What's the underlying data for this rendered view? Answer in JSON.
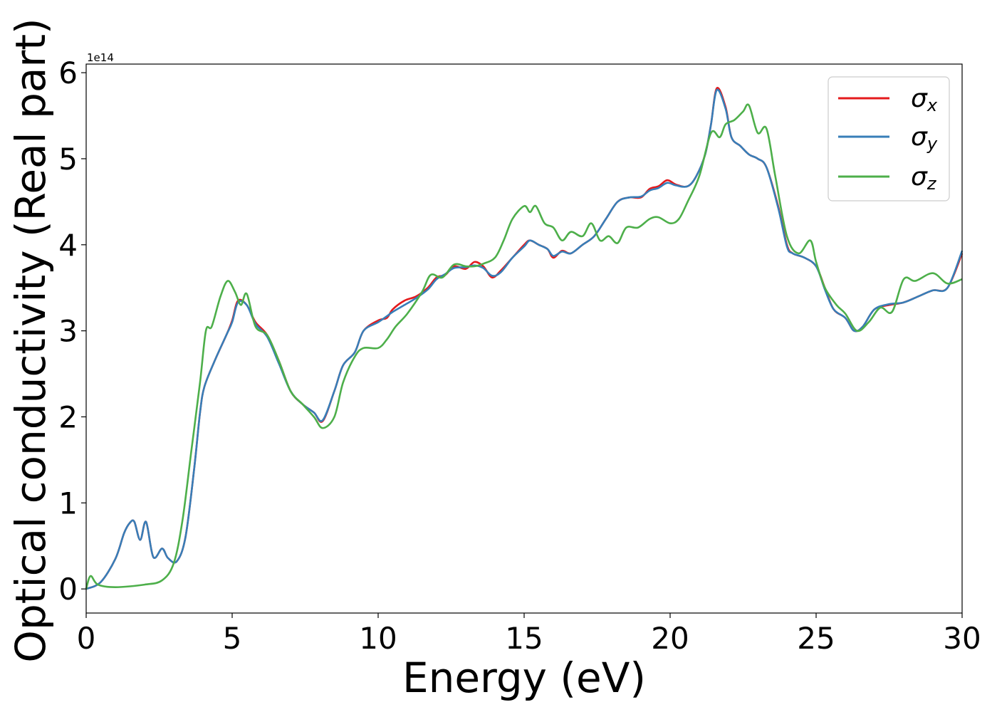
{
  "colors": {
    "sx": "#e41a1c",
    "sy": "#377eb8",
    "sz": "#4daf4a"
  },
  "chart_data": {
    "type": "line",
    "xlabel": "Energy (eV)",
    "ylabel": "Optical conductivity (Real part)",
    "y_offset_label": "1e14",
    "xlim": [
      0,
      30
    ],
    "ylim": [
      -0.28,
      6.1
    ],
    "xticks": [
      0,
      5,
      10,
      15,
      20,
      25,
      30
    ],
    "xtick_labels": [
      "0",
      "5",
      "10",
      "15",
      "20",
      "25",
      "30"
    ],
    "yticks": [
      0,
      1,
      2,
      3,
      4,
      5,
      6
    ],
    "ytick_labels": [
      "0",
      "1",
      "2",
      "3",
      "4",
      "5",
      "6"
    ],
    "grid": false,
    "legend_position": "top-right",
    "legend_labels": {
      "sx_main": "σ",
      "sx_sub": "x",
      "sy_main": "σ",
      "sy_sub": "y",
      "sz_main": "σ",
      "sz_sub": "z"
    },
    "series": [
      {
        "key": "sx",
        "points": [
          [
            0,
            0
          ],
          [
            0.5,
            0.08
          ],
          [
            1.0,
            0.35
          ],
          [
            1.3,
            0.65
          ],
          [
            1.5,
            0.77
          ],
          [
            1.65,
            0.78
          ],
          [
            1.85,
            0.57
          ],
          [
            2.05,
            0.78
          ],
          [
            2.3,
            0.37
          ],
          [
            2.6,
            0.47
          ],
          [
            2.8,
            0.36
          ],
          [
            3.1,
            0.32
          ],
          [
            3.4,
            0.6
          ],
          [
            3.7,
            1.4
          ],
          [
            3.9,
            2.05
          ],
          [
            4.05,
            2.35
          ],
          [
            4.4,
            2.65
          ],
          [
            4.8,
            2.95
          ],
          [
            5.0,
            3.12
          ],
          [
            5.2,
            3.35
          ],
          [
            5.5,
            3.3
          ],
          [
            5.8,
            3.1
          ],
          [
            6.2,
            2.95
          ],
          [
            6.6,
            2.65
          ],
          [
            7.0,
            2.3
          ],
          [
            7.4,
            2.15
          ],
          [
            7.8,
            2.05
          ],
          [
            8.1,
            1.95
          ],
          [
            8.5,
            2.3
          ],
          [
            8.8,
            2.6
          ],
          [
            9.2,
            2.75
          ],
          [
            9.5,
            3.0
          ],
          [
            10.0,
            3.12
          ],
          [
            10.3,
            3.15
          ],
          [
            10.5,
            3.25
          ],
          [
            10.9,
            3.35
          ],
          [
            11.3,
            3.4
          ],
          [
            11.7,
            3.5
          ],
          [
            12.0,
            3.62
          ],
          [
            12.3,
            3.65
          ],
          [
            12.6,
            3.75
          ],
          [
            13.0,
            3.72
          ],
          [
            13.3,
            3.8
          ],
          [
            13.6,
            3.75
          ],
          [
            13.9,
            3.62
          ],
          [
            14.2,
            3.7
          ],
          [
            14.6,
            3.85
          ],
          [
            15.0,
            4.0
          ],
          [
            15.2,
            4.05
          ],
          [
            15.5,
            4.0
          ],
          [
            15.8,
            3.95
          ],
          [
            16.0,
            3.85
          ],
          [
            16.3,
            3.93
          ],
          [
            16.6,
            3.9
          ],
          [
            17.0,
            4.0
          ],
          [
            17.4,
            4.1
          ],
          [
            17.8,
            4.3
          ],
          [
            18.2,
            4.5
          ],
          [
            18.6,
            4.55
          ],
          [
            19.0,
            4.55
          ],
          [
            19.3,
            4.65
          ],
          [
            19.6,
            4.68
          ],
          [
            19.9,
            4.75
          ],
          [
            20.2,
            4.7
          ],
          [
            20.6,
            4.68
          ],
          [
            20.9,
            4.8
          ],
          [
            21.2,
            5.05
          ],
          [
            21.4,
            5.4
          ],
          [
            21.6,
            5.82
          ],
          [
            21.9,
            5.6
          ],
          [
            22.1,
            5.25
          ],
          [
            22.4,
            5.15
          ],
          [
            22.7,
            5.05
          ],
          [
            23.0,
            5.0
          ],
          [
            23.3,
            4.9
          ],
          [
            23.7,
            4.45
          ],
          [
            24.0,
            4.0
          ],
          [
            24.2,
            3.9
          ],
          [
            24.6,
            3.85
          ],
          [
            25.0,
            3.75
          ],
          [
            25.3,
            3.5
          ],
          [
            25.6,
            3.25
          ],
          [
            26.0,
            3.15
          ],
          [
            26.3,
            3.0
          ],
          [
            26.6,
            3.05
          ],
          [
            27.0,
            3.25
          ],
          [
            27.5,
            3.3
          ],
          [
            28.0,
            3.33
          ],
          [
            28.5,
            3.4
          ],
          [
            29.0,
            3.47
          ],
          [
            29.5,
            3.5
          ],
          [
            30,
            3.9
          ]
        ]
      },
      {
        "key": "sy",
        "points": [
          [
            0,
            0
          ],
          [
            0.5,
            0.08
          ],
          [
            1.0,
            0.35
          ],
          [
            1.3,
            0.65
          ],
          [
            1.5,
            0.77
          ],
          [
            1.65,
            0.78
          ],
          [
            1.85,
            0.57
          ],
          [
            2.05,
            0.78
          ],
          [
            2.3,
            0.37
          ],
          [
            2.6,
            0.47
          ],
          [
            2.8,
            0.36
          ],
          [
            3.1,
            0.32
          ],
          [
            3.4,
            0.6
          ],
          [
            3.7,
            1.4
          ],
          [
            3.9,
            2.05
          ],
          [
            4.05,
            2.35
          ],
          [
            4.4,
            2.65
          ],
          [
            4.8,
            2.95
          ],
          [
            5.0,
            3.1
          ],
          [
            5.2,
            3.33
          ],
          [
            5.5,
            3.3
          ],
          [
            5.8,
            3.08
          ],
          [
            6.2,
            2.93
          ],
          [
            6.6,
            2.62
          ],
          [
            7.0,
            2.3
          ],
          [
            7.4,
            2.15
          ],
          [
            7.8,
            2.05
          ],
          [
            8.1,
            1.96
          ],
          [
            8.5,
            2.3
          ],
          [
            8.8,
            2.6
          ],
          [
            9.2,
            2.75
          ],
          [
            9.5,
            3.0
          ],
          [
            10.0,
            3.1
          ],
          [
            10.3,
            3.17
          ],
          [
            10.5,
            3.22
          ],
          [
            10.9,
            3.3
          ],
          [
            11.3,
            3.38
          ],
          [
            11.7,
            3.48
          ],
          [
            12.0,
            3.6
          ],
          [
            12.3,
            3.66
          ],
          [
            12.6,
            3.73
          ],
          [
            13.0,
            3.74
          ],
          [
            13.3,
            3.76
          ],
          [
            13.6,
            3.73
          ],
          [
            13.9,
            3.64
          ],
          [
            14.2,
            3.68
          ],
          [
            14.6,
            3.85
          ],
          [
            15.0,
            3.98
          ],
          [
            15.2,
            4.05
          ],
          [
            15.5,
            4.0
          ],
          [
            15.8,
            3.95
          ],
          [
            16.0,
            3.87
          ],
          [
            16.3,
            3.92
          ],
          [
            16.6,
            3.9
          ],
          [
            17.0,
            4.0
          ],
          [
            17.4,
            4.1
          ],
          [
            17.8,
            4.3
          ],
          [
            18.2,
            4.5
          ],
          [
            18.6,
            4.55
          ],
          [
            19.0,
            4.56
          ],
          [
            19.3,
            4.63
          ],
          [
            19.6,
            4.66
          ],
          [
            19.9,
            4.72
          ],
          [
            20.2,
            4.69
          ],
          [
            20.6,
            4.68
          ],
          [
            20.9,
            4.8
          ],
          [
            21.2,
            5.05
          ],
          [
            21.4,
            5.4
          ],
          [
            21.6,
            5.8
          ],
          [
            21.9,
            5.58
          ],
          [
            22.1,
            5.25
          ],
          [
            22.4,
            5.15
          ],
          [
            22.7,
            5.05
          ],
          [
            23.0,
            5.0
          ],
          [
            23.3,
            4.9
          ],
          [
            23.7,
            4.43
          ],
          [
            24.0,
            3.98
          ],
          [
            24.2,
            3.9
          ],
          [
            24.6,
            3.85
          ],
          [
            25.0,
            3.75
          ],
          [
            25.3,
            3.48
          ],
          [
            25.6,
            3.25
          ],
          [
            26.0,
            3.15
          ],
          [
            26.3,
            3.0
          ],
          [
            26.6,
            3.05
          ],
          [
            27.0,
            3.25
          ],
          [
            27.5,
            3.31
          ],
          [
            28.0,
            3.33
          ],
          [
            28.5,
            3.4
          ],
          [
            29.0,
            3.47
          ],
          [
            29.5,
            3.5
          ],
          [
            30,
            3.93
          ]
        ]
      },
      {
        "key": "sz",
        "points": [
          [
            0,
            0
          ],
          [
            0.15,
            0.15
          ],
          [
            0.4,
            0.05
          ],
          [
            1.0,
            0.02
          ],
          [
            2.0,
            0.05
          ],
          [
            2.6,
            0.1
          ],
          [
            3.0,
            0.3
          ],
          [
            3.3,
            0.8
          ],
          [
            3.6,
            1.6
          ],
          [
            3.9,
            2.4
          ],
          [
            4.1,
            3.0
          ],
          [
            4.3,
            3.05
          ],
          [
            4.6,
            3.4
          ],
          [
            4.85,
            3.58
          ],
          [
            5.1,
            3.45
          ],
          [
            5.3,
            3.3
          ],
          [
            5.5,
            3.43
          ],
          [
            5.8,
            3.05
          ],
          [
            6.2,
            2.95
          ],
          [
            6.6,
            2.65
          ],
          [
            7.0,
            2.3
          ],
          [
            7.4,
            2.15
          ],
          [
            7.8,
            2.0
          ],
          [
            8.1,
            1.87
          ],
          [
            8.5,
            2.0
          ],
          [
            8.8,
            2.4
          ],
          [
            9.2,
            2.7
          ],
          [
            9.5,
            2.8
          ],
          [
            10.0,
            2.8
          ],
          [
            10.3,
            2.9
          ],
          [
            10.6,
            3.05
          ],
          [
            11.0,
            3.2
          ],
          [
            11.5,
            3.45
          ],
          [
            11.8,
            3.65
          ],
          [
            12.2,
            3.62
          ],
          [
            12.6,
            3.77
          ],
          [
            13.0,
            3.75
          ],
          [
            13.3,
            3.75
          ],
          [
            13.6,
            3.78
          ],
          [
            14.0,
            3.85
          ],
          [
            14.3,
            4.05
          ],
          [
            14.6,
            4.3
          ],
          [
            15.0,
            4.45
          ],
          [
            15.2,
            4.38
          ],
          [
            15.4,
            4.45
          ],
          [
            15.7,
            4.25
          ],
          [
            16.0,
            4.2
          ],
          [
            16.3,
            4.05
          ],
          [
            16.6,
            4.15
          ],
          [
            17.0,
            4.1
          ],
          [
            17.3,
            4.25
          ],
          [
            17.6,
            4.05
          ],
          [
            17.9,
            4.1
          ],
          [
            18.2,
            4.02
          ],
          [
            18.5,
            4.2
          ],
          [
            18.9,
            4.2
          ],
          [
            19.3,
            4.3
          ],
          [
            19.6,
            4.32
          ],
          [
            20.0,
            4.25
          ],
          [
            20.3,
            4.3
          ],
          [
            20.6,
            4.5
          ],
          [
            21.0,
            4.8
          ],
          [
            21.4,
            5.3
          ],
          [
            21.7,
            5.25
          ],
          [
            21.9,
            5.4
          ],
          [
            22.2,
            5.45
          ],
          [
            22.5,
            5.55
          ],
          [
            22.7,
            5.62
          ],
          [
            23.0,
            5.3
          ],
          [
            23.3,
            5.35
          ],
          [
            23.6,
            4.8
          ],
          [
            24.0,
            4.1
          ],
          [
            24.4,
            3.9
          ],
          [
            24.8,
            4.05
          ],
          [
            25.0,
            3.8
          ],
          [
            25.3,
            3.5
          ],
          [
            25.7,
            3.3
          ],
          [
            26.0,
            3.2
          ],
          [
            26.4,
            3.0
          ],
          [
            26.8,
            3.1
          ],
          [
            27.2,
            3.27
          ],
          [
            27.6,
            3.22
          ],
          [
            28.0,
            3.6
          ],
          [
            28.4,
            3.58
          ],
          [
            29.0,
            3.67
          ],
          [
            29.5,
            3.55
          ],
          [
            30,
            3.6
          ]
        ]
      }
    ]
  }
}
